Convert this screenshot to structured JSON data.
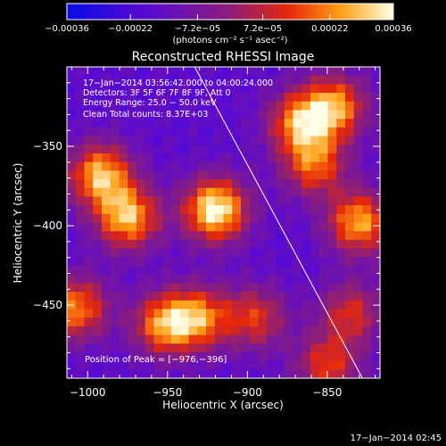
{
  "chart_data": {
    "type": "heatmap",
    "title": "Reconstructed RHESSI Image",
    "xlabel": "Heliocentric X (arcsec)",
    "ylabel": "Heliocentric Y (arcsec)",
    "xlim": [
      -1013,
      -817
    ],
    "ylim": [
      -496,
      -300
    ],
    "x_ticks": [
      -1000,
      -950,
      -900,
      -850
    ],
    "x_tick_labels": [
      "−1000",
      "−950",
      "−900",
      "−850"
    ],
    "y_ticks": [
      -350,
      -400,
      -450
    ],
    "y_tick_labels": [
      "−350",
      "−400",
      "−450"
    ],
    "colorbar": {
      "min": -0.00036,
      "max": 0.00036,
      "colormap": "blue-purple-red-yellow-white",
      "tick_values": [
        -0.00036,
        -0.00022,
        -7.2e-05,
        7.2e-05,
        0.00022,
        0.00036
      ],
      "tick_labels": [
        "−0.00036",
        "−0.00022",
        "−7.2e−05",
        "7.2e−05",
        "0.00022",
        "0.00036"
      ],
      "unit_label": "(photons cm⁻² s⁻¹ asec⁻²)"
    },
    "annotations": [
      "17−Jan−2014 03:56:42.000 to 04:00:24.000",
      "Detectors: 3F 5F 6F 7F 8F 9F, Att 0",
      "Energy Range: 25.0 − 50.0 keV",
      "Clean      Total counts: 8.37E+03"
    ],
    "peak_label": "Position of Peak = [−976,−396]",
    "peak_position": [
      -976,
      -396
    ],
    "limb_line": [
      [
        -933,
        -300
      ],
      [
        -828,
        -496
      ]
    ],
    "sources": [
      {
        "x": -920,
        "y": -390,
        "peak": 1.0
      },
      {
        "x": -992,
        "y": -368,
        "peak": 0.82
      },
      {
        "x": -975,
        "y": -395,
        "peak": 0.82
      },
      {
        "x": -952,
        "y": -462,
        "peak": 0.72
      },
      {
        "x": -930,
        "y": -458,
        "peak": 0.65
      },
      {
        "x": -895,
        "y": -458,
        "peak": 0.52
      },
      {
        "x": -1007,
        "y": -452,
        "peak": 0.7
      },
      {
        "x": -867,
        "y": -335,
        "peak": 0.72
      },
      {
        "x": -845,
        "y": -325,
        "peak": 0.72
      },
      {
        "x": -858,
        "y": -362,
        "peak": 0.62
      },
      {
        "x": -830,
        "y": -398,
        "peak": 0.78
      },
      {
        "x": -850,
        "y": -488,
        "peak": 0.55
      },
      {
        "x": -835,
        "y": -455,
        "peak": 0.5
      }
    ],
    "timestamp": "17−Jan−2014 02:45"
  }
}
